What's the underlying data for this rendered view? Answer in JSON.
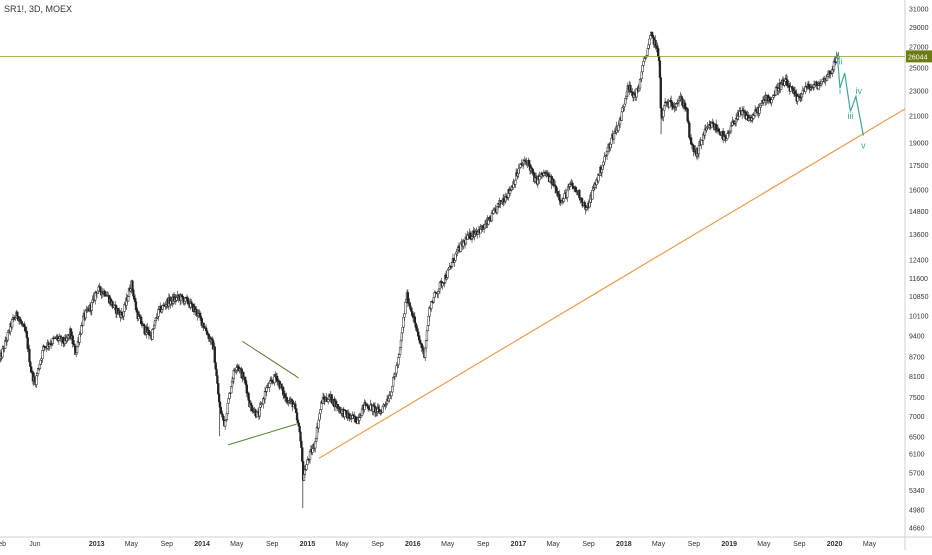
{
  "header": {
    "symbol": "SR1!, 3D, MOEX"
  },
  "chart_data": {
    "type": "candlestick",
    "colors": {
      "candle": "#222222",
      "price_line": "#8a9a2a",
      "last_price_badge": "#6e7a14",
      "trendline": "#f29a4a",
      "triangle_upper": "#5a7d2a",
      "triangle_lower": "#4e8a2a",
      "wave": "#3aaa9a",
      "axis_text": "#333333"
    },
    "y_axis": {
      "scale": "log",
      "range": [
        4500,
        32000
      ],
      "position": "right",
      "ticks": [
        31000,
        29000,
        27000,
        25000,
        23000,
        21000,
        19000,
        17500,
        16000,
        14800,
        13600,
        12400,
        11600,
        10850,
        10100,
        9400,
        8700,
        8100,
        7500,
        7000,
        6500,
        6100,
        5700,
        5340,
        4980,
        4660
      ]
    },
    "x_axis": {
      "range": [
        "2012-02-01",
        "2020-09-01"
      ],
      "ticks": [
        {
          "label": "Feb",
          "date": "2012-02-01",
          "bold": false
        },
        {
          "label": "Jun",
          "date": "2012-06-01",
          "bold": false
        },
        {
          "label": "2013",
          "date": "2013-01-01",
          "bold": true
        },
        {
          "label": "May",
          "date": "2013-05-01",
          "bold": false
        },
        {
          "label": "Sep",
          "date": "2013-09-01",
          "bold": false
        },
        {
          "label": "2014",
          "date": "2014-01-01",
          "bold": true
        },
        {
          "label": "May",
          "date": "2014-05-01",
          "bold": false
        },
        {
          "label": "Sep",
          "date": "2014-09-01",
          "bold": false
        },
        {
          "label": "2015",
          "date": "2015-01-01",
          "bold": true
        },
        {
          "label": "May",
          "date": "2015-05-01",
          "bold": false
        },
        {
          "label": "Sep",
          "date": "2015-09-01",
          "bold": false
        },
        {
          "label": "2016",
          "date": "2016-01-01",
          "bold": true
        },
        {
          "label": "May",
          "date": "2016-05-01",
          "bold": false
        },
        {
          "label": "Sep",
          "date": "2016-09-01",
          "bold": false
        },
        {
          "label": "2017",
          "date": "2017-01-01",
          "bold": true
        },
        {
          "label": "May",
          "date": "2017-05-01",
          "bold": false
        },
        {
          "label": "Sep",
          "date": "2017-09-01",
          "bold": false
        },
        {
          "label": "2018",
          "date": "2018-01-01",
          "bold": true
        },
        {
          "label": "May",
          "date": "2018-05-01",
          "bold": false
        },
        {
          "label": "Sep",
          "date": "2018-09-01",
          "bold": false
        },
        {
          "label": "2019",
          "date": "2019-01-01",
          "bold": true
        },
        {
          "label": "May",
          "date": "2019-05-01",
          "bold": false
        },
        {
          "label": "Sep",
          "date": "2019-09-01",
          "bold": false
        },
        {
          "label": "2020",
          "date": "2020-01-01",
          "bold": true
        },
        {
          "label": "May",
          "date": "2020-05-01",
          "bold": false
        }
      ]
    },
    "price_path": [
      [
        "2012-02-01",
        8600
      ],
      [
        "2012-03-15",
        9900
      ],
      [
        "2012-04-01",
        10150
      ],
      [
        "2012-05-01",
        9450
      ],
      [
        "2012-05-20",
        8200
      ],
      [
        "2012-06-01",
        7900
      ],
      [
        "2012-07-01",
        9000
      ],
      [
        "2012-08-15",
        9300
      ],
      [
        "2012-09-15",
        9150
      ],
      [
        "2012-10-01",
        9500
      ],
      [
        "2012-10-20",
        8800
      ],
      [
        "2012-11-15",
        10000
      ],
      [
        "2012-12-15",
        10500
      ],
      [
        "2013-01-01",
        11100
      ],
      [
        "2013-02-01",
        11000
      ],
      [
        "2013-03-01",
        10400
      ],
      [
        "2013-04-01",
        10100
      ],
      [
        "2013-05-01",
        11400
      ],
      [
        "2013-05-20",
        10200
      ],
      [
        "2013-06-15",
        9600
      ],
      [
        "2013-07-10",
        9400
      ],
      [
        "2013-08-01",
        10200
      ],
      [
        "2013-09-01",
        10600
      ],
      [
        "2013-10-15",
        10800
      ],
      [
        "2013-11-15",
        10600
      ],
      [
        "2013-12-15",
        10200
      ],
      [
        "2014-01-10",
        9700
      ],
      [
        "2014-02-10",
        9000
      ],
      [
        "2014-03-03",
        7200
      ],
      [
        "2014-03-20",
        6800
      ],
      [
        "2014-04-15",
        8000
      ],
      [
        "2014-05-01",
        8500
      ],
      [
        "2014-06-01",
        7900
      ],
      [
        "2014-06-15",
        7300
      ],
      [
        "2014-07-15",
        7000
      ],
      [
        "2014-08-10",
        7700
      ],
      [
        "2014-09-15",
        8100
      ],
      [
        "2014-10-15",
        7500
      ],
      [
        "2014-11-15",
        7300
      ],
      [
        "2014-12-10",
        6400
      ],
      [
        "2014-12-16",
        5600
      ],
      [
        "2015-01-05",
        6000
      ],
      [
        "2015-01-25",
        6300
      ],
      [
        "2015-02-20",
        7400
      ],
      [
        "2015-03-20",
        7500
      ],
      [
        "2015-04-20",
        7200
      ],
      [
        "2015-05-20",
        7000
      ],
      [
        "2015-06-20",
        6900
      ],
      [
        "2015-07-20",
        7300
      ],
      [
        "2015-08-15",
        7200
      ],
      [
        "2015-09-10",
        7100
      ],
      [
        "2015-10-15",
        7600
      ],
      [
        "2015-11-15",
        8700
      ],
      [
        "2015-12-10",
        10900
      ],
      [
        "2015-12-31",
        10200
      ],
      [
        "2016-01-20",
        9300
      ],
      [
        "2016-02-10",
        8800
      ],
      [
        "2016-03-01",
        10500
      ],
      [
        "2016-04-01",
        11200
      ],
      [
        "2016-05-01",
        11800
      ],
      [
        "2016-06-01",
        12700
      ],
      [
        "2016-07-01",
        13300
      ],
      [
        "2016-08-01",
        13700
      ],
      [
        "2016-09-01",
        13900
      ],
      [
        "2016-10-01",
        14500
      ],
      [
        "2016-11-01",
        15300
      ],
      [
        "2016-12-01",
        15900
      ],
      [
        "2017-01-10",
        17500
      ],
      [
        "2017-02-01",
        17800
      ],
      [
        "2017-03-01",
        16500
      ],
      [
        "2017-04-01",
        17000
      ],
      [
        "2017-05-01",
        16400
      ],
      [
        "2017-06-01",
        15300
      ],
      [
        "2017-07-01",
        16300
      ],
      [
        "2017-08-01",
        15700
      ],
      [
        "2017-08-25",
        14800
      ],
      [
        "2017-09-15",
        15900
      ],
      [
        "2017-10-15",
        17300
      ],
      [
        "2017-11-20",
        19300
      ],
      [
        "2017-12-20",
        20600
      ],
      [
        "2018-01-15",
        23500
      ],
      [
        "2018-01-31",
        22500
      ],
      [
        "2018-02-20",
        23000
      ],
      [
        "2018-03-05",
        24800
      ],
      [
        "2018-03-20",
        26300
      ],
      [
        "2018-04-05",
        28100
      ],
      [
        "2018-04-20",
        27300
      ],
      [
        "2018-05-05",
        25500
      ],
      [
        "2018-05-10",
        20500
      ],
      [
        "2018-05-25",
        22000
      ],
      [
        "2018-06-20",
        21800
      ],
      [
        "2018-07-15",
        22300
      ],
      [
        "2018-08-05",
        21600
      ],
      [
        "2018-08-20",
        18900
      ],
      [
        "2018-09-10",
        18200
      ],
      [
        "2018-10-05",
        19600
      ],
      [
        "2018-11-01",
        20300
      ],
      [
        "2018-12-01",
        19800
      ],
      [
        "2018-12-20",
        19100
      ],
      [
        "2019-01-20",
        20700
      ],
      [
        "2019-02-15",
        21200
      ],
      [
        "2019-03-15",
        20700
      ],
      [
        "2019-04-15",
        21500
      ],
      [
        "2019-05-10",
        22500
      ],
      [
        "2019-05-25",
        22200
      ],
      [
        "2019-06-20",
        23300
      ],
      [
        "2019-07-15",
        23700
      ],
      [
        "2019-08-05",
        23000
      ],
      [
        "2019-08-25",
        22200
      ],
      [
        "2019-09-20",
        23200
      ],
      [
        "2019-10-20",
        23300
      ],
      [
        "2019-11-15",
        23600
      ],
      [
        "2019-12-20",
        24700
      ],
      [
        "2020-01-10",
        25900
      ],
      [
        "2020-01-15",
        26300
      ]
    ],
    "last_price": {
      "value": 26044,
      "label": "26044"
    },
    "drawings": {
      "support_trendline": {
        "from": [
          "2015-02-10",
          6000
        ],
        "to": [
          "2020-09-01",
          21500
        ]
      },
      "triangle_upper": {
        "from": [
          "2014-05-20",
          9200
        ],
        "to": [
          "2014-12-01",
          8050
        ]
      },
      "triangle_lower": {
        "from": [
          "2014-04-01",
          6300
        ],
        "to": [
          "2014-11-25",
          6800
        ]
      }
    },
    "wave_projection": {
      "path": [
        [
          "2020-01-10",
          26200
        ],
        [
          "2020-01-20",
          23200
        ],
        [
          "2020-02-05",
          24500
        ],
        [
          "2020-02-25",
          21300
        ],
        [
          "2020-03-15",
          22500
        ],
        [
          "2020-04-10",
          19500
        ]
      ],
      "labels": [
        {
          "text": "ii",
          "date": "2020-01-22",
          "value": 25300
        },
        {
          "text": "i",
          "date": "2020-01-20",
          "value": 22700
        },
        {
          "text": "iv",
          "date": "2020-03-25",
          "value": 22700
        },
        {
          "text": "iii",
          "date": "2020-02-25",
          "value": 20700
        },
        {
          "text": "v",
          "date": "2020-04-10",
          "value": 18600
        }
      ]
    }
  }
}
